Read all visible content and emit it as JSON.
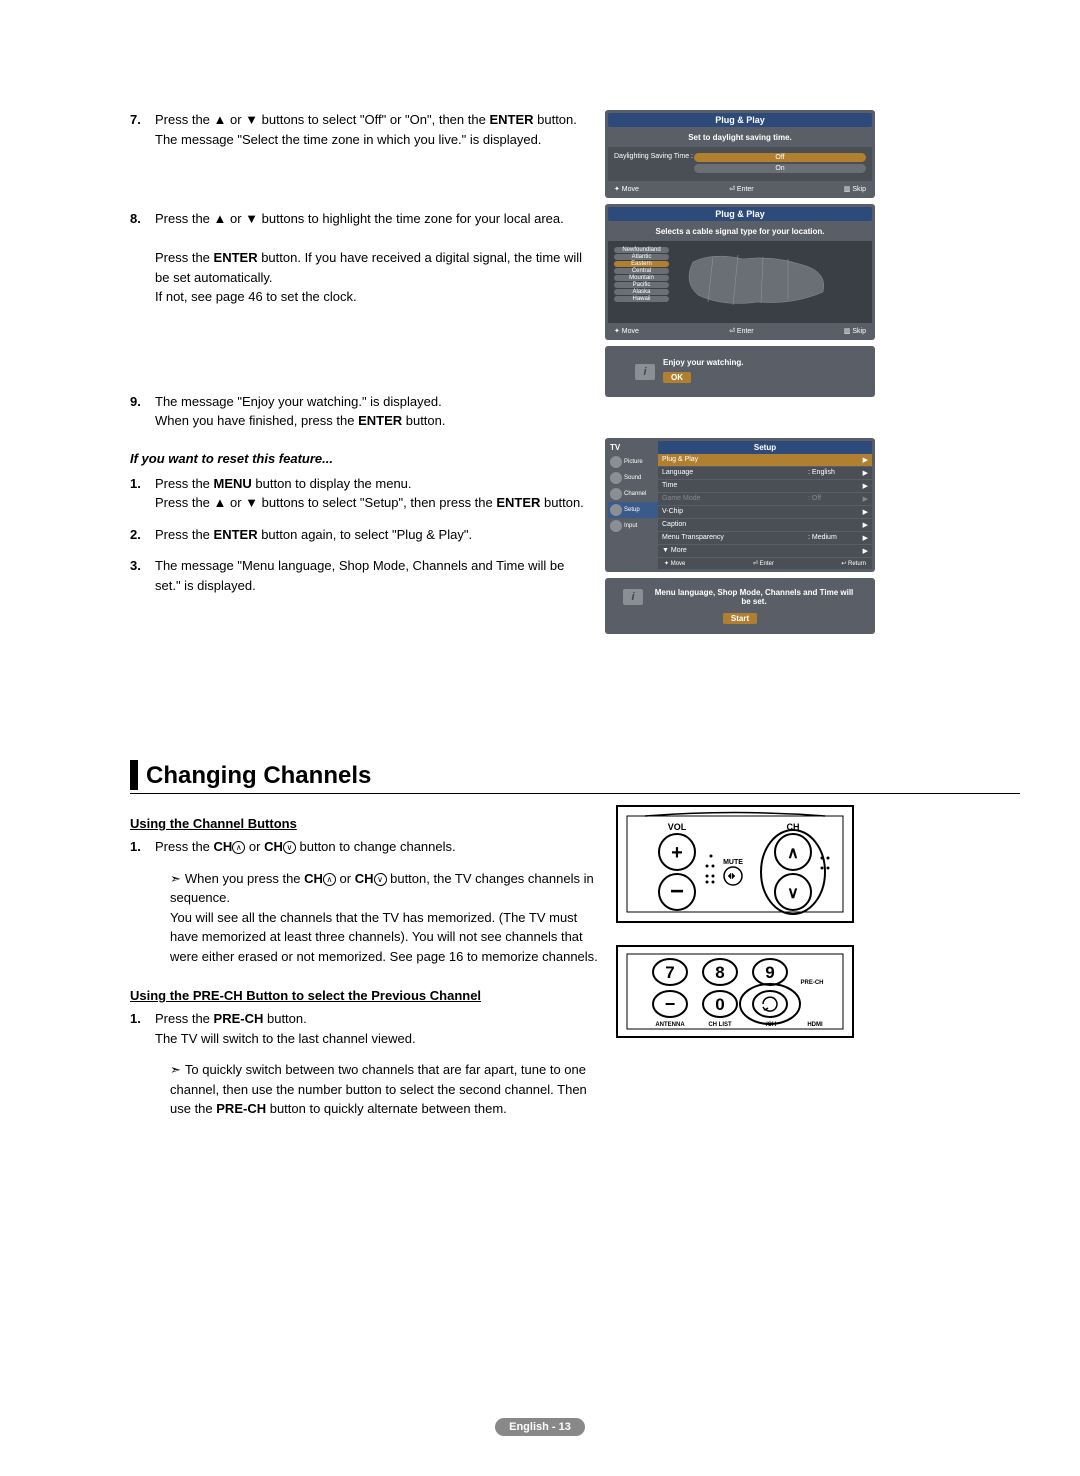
{
  "steps_a": [
    {
      "num": "7.",
      "html": "Press the ▲ or ▼ buttons to select \"Off\" or \"On\", then the <b>ENTER</b> button. The message \"Select the time zone in which you live.\" is displayed."
    },
    {
      "num": "8.",
      "html": "Press the ▲ or ▼ buttons to highlight the time zone for your local area.<br><br>Press the <b>ENTER</b> button. If you have received a digital signal, the time will be set automatically.<br>If not, see page 46 to set the clock."
    },
    {
      "num": "9.",
      "html": "The message \"Enjoy your watching.\" is displayed.<br>When you have finished, press the <b>ENTER</b> button."
    }
  ],
  "reset_heading": "If you want to reset this feature...",
  "steps_b": [
    {
      "num": "1.",
      "html": "Press the <b>MENU</b> button to display the menu.<br>Press the ▲ or ▼ buttons to select \"Setup\", then press the <b>ENTER</b> button."
    },
    {
      "num": "2.",
      "html": "Press the <b>ENTER</b> button again, to select \"Plug & Play\"."
    },
    {
      "num": "3.",
      "html": "The message \"Menu language, Shop Mode, Channels and Time will be set.\" is displayed."
    }
  ],
  "screen1": {
    "title": "Plug & Play",
    "msg": "Set to daylight saving time.",
    "label": "Daylighting Saving Time :",
    "opts": [
      "Off",
      "On"
    ],
    "footer": [
      "✦ Move",
      "⏎ Enter",
      "▥ Skip"
    ]
  },
  "screen2": {
    "title": "Plug & Play",
    "msg": "Selects a cable signal type for your location.",
    "zones": [
      "Newfoundland",
      "Atlantic",
      "Eastern",
      "Central",
      "Mountain",
      "Pacific",
      "Alaska",
      "Hawaii"
    ],
    "selected": 2,
    "footer": [
      "✦ Move",
      "⏎ Enter",
      "▥ Skip"
    ]
  },
  "screen3": {
    "msg": "Enjoy your watching.",
    "btn": "OK"
  },
  "screen4": {
    "hdr_left": "TV",
    "hdr_right": "Setup",
    "nav": [
      "Picture",
      "Sound",
      "Channel",
      "Setup",
      "Input"
    ],
    "nav_active": 3,
    "rows": [
      {
        "lbl": "Plug & Play",
        "val": "",
        "hl": true
      },
      {
        "lbl": "Language",
        "val": ": English"
      },
      {
        "lbl": "Time",
        "val": ""
      },
      {
        "lbl": "Game Mode",
        "val": ": Off",
        "dim": true
      },
      {
        "lbl": "V-Chip",
        "val": ""
      },
      {
        "lbl": "Caption",
        "val": ""
      },
      {
        "lbl": "Menu Transparency",
        "val": ": Medium"
      },
      {
        "lbl": "▼ More",
        "val": ""
      }
    ],
    "footer": [
      "✦ Move",
      "⏎ Enter",
      "↩ Return"
    ]
  },
  "screen5": {
    "msg": "Menu language, Shop Mode, Channels and Time will be set.",
    "btn": "Start"
  },
  "section_title": "Changing Channels",
  "subsection1": "Using the Channel Buttons",
  "sub1_steps": [
    {
      "num": "1.",
      "html": "Press the <b>CH</b><span class='ch-circ'>∧</span> or <b>CH</b><span class='ch-circ'>∨</span> button to change channels."
    }
  ],
  "sub1_note": "When you press the <b>CH</b><span class='ch-circ'>∧</span> or <b>CH</b><span class='ch-circ'>∨</span> button, the TV changes channels in sequence.<br>You will see all the channels that the TV has memorized. (The TV must have memorized at least three channels). You will not see channels that were either erased or not memorized. See page 16 to memorize channels.",
  "subsection2": "Using the PRE-CH Button to select the Previous Channel",
  "sub2_steps": [
    {
      "num": "1.",
      "html": "Press the <b>PRE-CH</b> button.<br>The TV will switch to the last channel viewed."
    }
  ],
  "sub2_note": "To quickly switch between two channels that are far apart, tune to one channel, then use the number button to select the second channel. Then use the <b>PRE-CH</b> button to quickly alternate between them.",
  "footer_text": "English - 13",
  "remote1": {
    "labels": {
      "vol": "VOL",
      "ch": "CH",
      "mute": "MUTE"
    }
  },
  "remote2": {
    "keys": [
      "7",
      "8",
      "9",
      "−",
      "0"
    ],
    "labels": [
      "ANTENNA",
      "CH LIST",
      "-/CH",
      "HDMI"
    ],
    "prech": "PRE-CH"
  },
  "colors": {
    "screen_bg": "#5a5e66",
    "title_bg": "#2c4a7a",
    "body_bg": "#4a4e55",
    "sel_bg": "#b08030",
    "footer_pill": "#888888"
  }
}
